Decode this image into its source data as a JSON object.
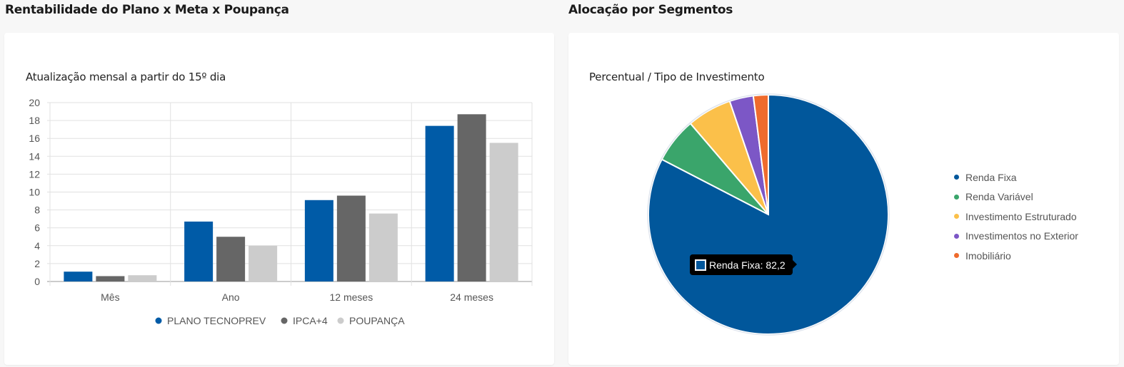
{
  "header": {
    "left_title": "Rentabilidade do Plano x Meta x Poupança",
    "right_title": "Alocação por Segmentos"
  },
  "colors": {
    "plano": "#005ba7",
    "ipca": "#666666",
    "poupanca": "#cccccc",
    "renda_fixa": "#01579b",
    "renda_variavel": "#3aa56b",
    "investimento_estruturado": "#fbc04a",
    "investimentos_exterior": "#7c57c6",
    "imobiliario": "#ef6b2d"
  },
  "chart_data": [
    {
      "type": "bar",
      "title": "Atualização mensal a partir do 15º dia",
      "categories": [
        "Mês",
        "Ano",
        "12 meses",
        "24 meses"
      ],
      "series": [
        {
          "name": "PLANO TECNOPREV",
          "color": "#005ba7",
          "values": [
            1.1,
            6.7,
            9.1,
            17.4
          ]
        },
        {
          "name": "IPCA+4",
          "color": "#666666",
          "values": [
            0.6,
            5.0,
            9.6,
            18.7
          ]
        },
        {
          "name": "POUPANÇA",
          "color": "#cccccc",
          "values": [
            0.7,
            4.0,
            7.6,
            15.5
          ]
        }
      ],
      "ylim": [
        0,
        20
      ],
      "yticks": [
        "0",
        "2",
        "4",
        "6",
        "8",
        "10",
        "12",
        "14",
        "16",
        "18",
        "20"
      ],
      "grid": true,
      "legend": "bottom"
    },
    {
      "type": "pie",
      "title": "Percentual / Tipo de Investimento",
      "slices": [
        {
          "label": "Renda Fixa",
          "value": 82.2,
          "color": "#01579b"
        },
        {
          "label": "Renda Variável",
          "value": 6.1,
          "color": "#3aa56b"
        },
        {
          "label": "Investimento Estruturado",
          "value": 6.0,
          "color": "#fbc04a"
        },
        {
          "label": "Investimentos no Exterior",
          "value": 3.2,
          "color": "#7c57c6"
        },
        {
          "label": "Imobiliário",
          "value": 2.0,
          "color": "#ef6b2d"
        }
      ],
      "legend": "right",
      "tooltip": "Renda Fixa: 82,2"
    }
  ]
}
